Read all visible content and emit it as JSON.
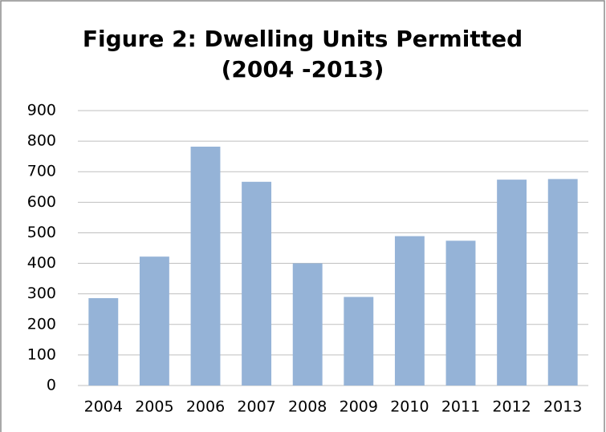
{
  "chart_data": {
    "type": "bar",
    "title": [
      "Figure 2: Dwelling Units Permitted",
      "(2004 -2013)"
    ],
    "categories": [
      "2004",
      "2005",
      "2006",
      "2007",
      "2008",
      "2009",
      "2010",
      "2011",
      "2012",
      "2013"
    ],
    "values": [
      286,
      422,
      782,
      667,
      400,
      290,
      489,
      474,
      674,
      676
    ],
    "color": "#95b3d7",
    "ylim": [
      0,
      900
    ],
    "yticks": [
      0,
      100,
      200,
      300,
      400,
      500,
      600,
      700,
      800,
      900
    ],
    "grid": true
  }
}
